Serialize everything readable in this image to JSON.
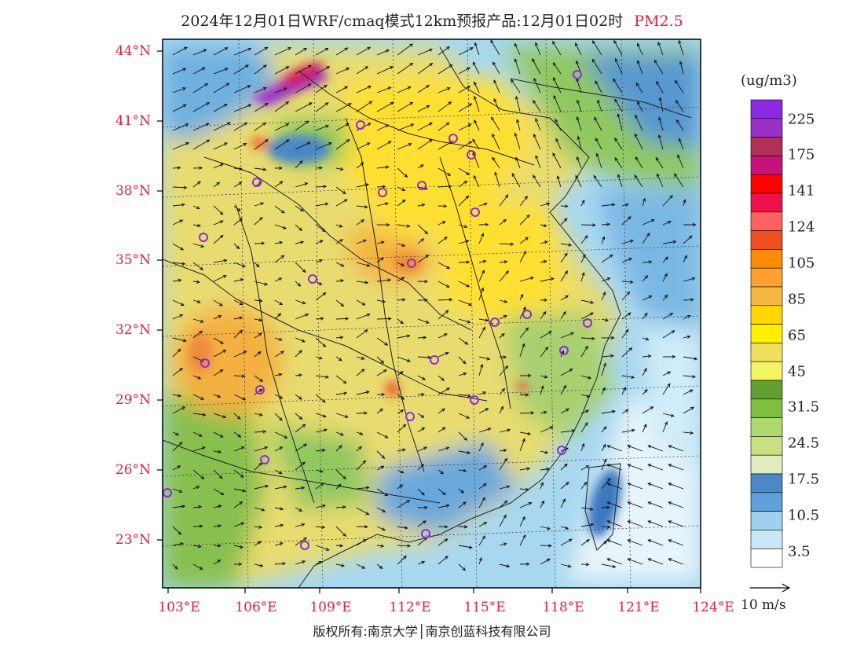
{
  "title": {
    "main": "2024年12月01日WRF/cmaq模式12km预报产品:12月01日02时",
    "pollutant": "PM2.5"
  },
  "axes": {
    "lat_labels": [
      "44°N",
      "41°N",
      "38°N",
      "35°N",
      "32°N",
      "29°N",
      "26°N",
      "23°N"
    ],
    "lon_labels": [
      "103°E",
      "106°E",
      "109°E",
      "112°E",
      "115°E",
      "118°E",
      "121°E",
      "124°E"
    ]
  },
  "colorbar": {
    "unit": "(ug/m3)",
    "labels": [
      "225",
      "175",
      "141",
      "124",
      "105",
      "85",
      "65",
      "45",
      "31.5",
      "24.5",
      "17.5",
      "10.5",
      "3.5"
    ],
    "colors": [
      "#8a2be2",
      "#9b30c8",
      "#b0305a",
      "#c8127a",
      "#ff0000",
      "#f0104a",
      "#ff6060",
      "#f05020",
      "#ff8c00",
      "#ffa030",
      "#f4b840",
      "#ffd800",
      "#fff000",
      "#f0e060",
      "#f4f460",
      "#60a030",
      "#80c040",
      "#b0d870",
      "#c8e080",
      "#e0ecc0",
      "#4a88c8",
      "#60a0dc",
      "#a0d0f0",
      "#c8e8f8",
      "#ffffff"
    ]
  },
  "wind_scale": {
    "label": "10 m/s"
  },
  "copyright": "版权所有:南京大学│南京创蓝科技有限公司"
}
